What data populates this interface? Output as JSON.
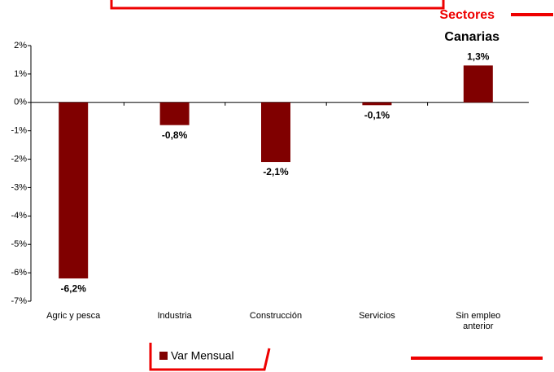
{
  "chart_data": {
    "type": "bar",
    "title": "Sectores",
    "subtitle": "Canarias",
    "categories": [
      "Agric y pesca",
      "Industria",
      "Construcción",
      "Servicios",
      "Sin empleo anterior"
    ],
    "series": [
      {
        "name": "Var Mensual",
        "color": "#800000",
        "values": [
          -6.2,
          -0.8,
          -2.1,
          -0.1,
          1.3
        ],
        "value_labels": [
          "-6,2%",
          "-0,8%",
          "-2,1%",
          "-0,1%",
          "1,3%"
        ]
      }
    ],
    "ylim": [
      -7,
      2
    ],
    "yticks": [
      {
        "value": 2,
        "label": "2%"
      },
      {
        "value": 1,
        "label": "1%"
      },
      {
        "value": 0,
        "label": "0%"
      },
      {
        "value": -1,
        "label": "-1%"
      },
      {
        "value": -2,
        "label": "-2%"
      },
      {
        "value": -3,
        "label": "-3%"
      },
      {
        "value": -4,
        "label": "-4%"
      },
      {
        "value": -5,
        "label": "-5%"
      },
      {
        "value": -6,
        "label": "-6%"
      },
      {
        "value": -7,
        "label": "-7%"
      }
    ]
  }
}
